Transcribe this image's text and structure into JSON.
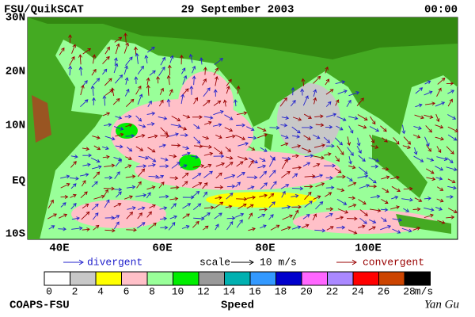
{
  "header": {
    "title": "FSU/QuikSCAT",
    "date": "29 September 2003",
    "time": "00:00"
  },
  "map": {
    "lat_labels": [
      "30N",
      "20N",
      "10N",
      "EQ",
      "10S"
    ],
    "lon_labels": [
      "40E",
      "60E",
      "80E",
      "100E"
    ]
  },
  "legend": {
    "divergent": "divergent",
    "scale": "scale",
    "scale_value": "10 m/s",
    "convergent": "convergent"
  },
  "colorbar": {
    "ticks": [
      "0",
      "2",
      "4",
      "6",
      "8",
      "10",
      "12",
      "14",
      "16",
      "18",
      "20",
      "22",
      "24",
      "26",
      "28"
    ],
    "unit": "m/s",
    "label": "Speed",
    "colors": [
      "#ffffff",
      "#c8c8c8",
      "#ffff00",
      "#ffc0c8",
      "#99ff99",
      "#00ee00",
      "#999999",
      "#00b0b0",
      "#3399ff",
      "#0000cc",
      "#ff66ff",
      "#aa88ff",
      "#ff0000",
      "#cc4400",
      "#000000"
    ]
  },
  "footer": {
    "left": "COAPS-FSU",
    "right": "Yan Gu"
  }
}
